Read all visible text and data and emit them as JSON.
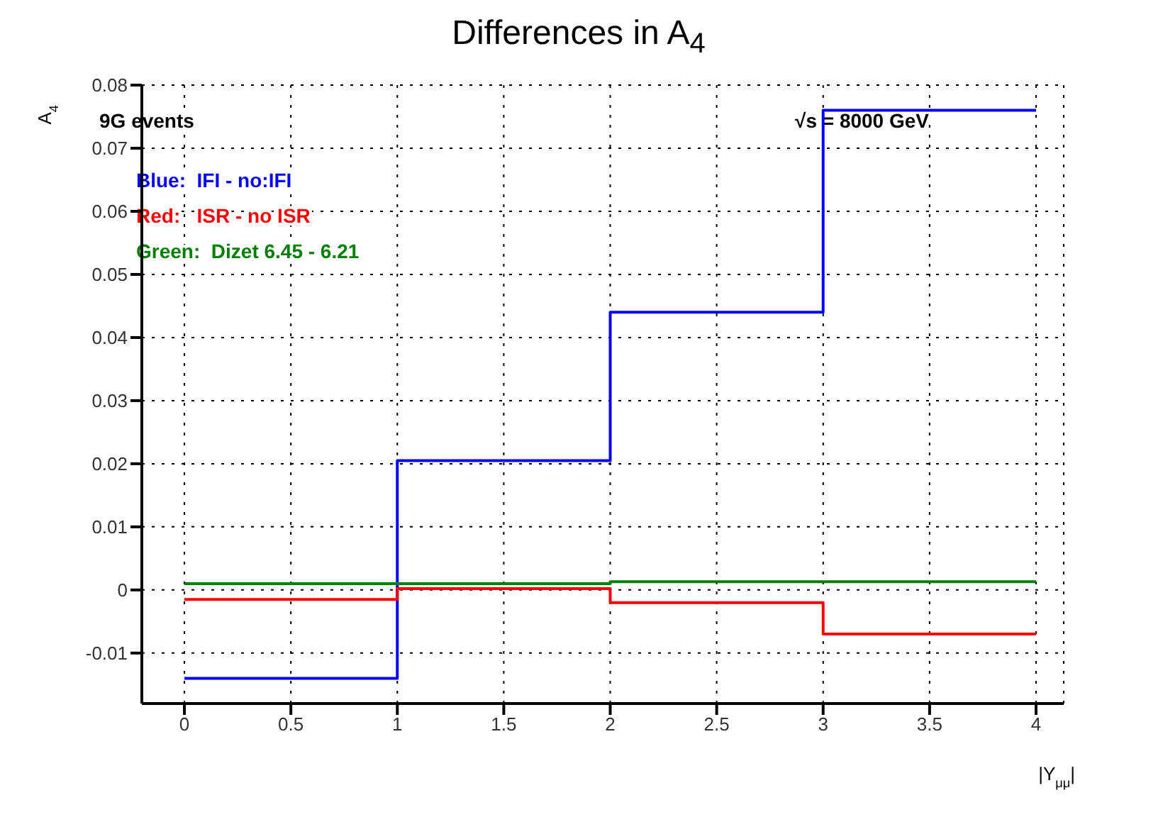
{
  "chart_data": {
    "type": "histogram",
    "title": "Differences in A$_{4}$",
    "xlabel": "|Y$_{μμ}$|",
    "ylabel": "A$_{4}$",
    "annotations": [
      "9G events",
      "√s = 8000 GeV"
    ],
    "bins": [
      0,
      1,
      2,
      3,
      4
    ],
    "series": [
      {
        "name": "Blue:  IFI - no:IFI",
        "color": "#0000ff",
        "values": [
          -0.014,
          0.0205,
          0.044,
          0.076
        ]
      },
      {
        "name": "Red:   ISR - no ISR",
        "color": "#ff0000",
        "values": [
          -0.0015,
          0.0002,
          -0.002,
          -0.007
        ]
      },
      {
        "name": "Green:  Dizet 6.45 - 6.21",
        "color": "#008000",
        "values": [
          0.001,
          0.001,
          0.0013,
          0.0013
        ]
      }
    ],
    "xlim": [
      -0.2,
      4.13
    ],
    "xticks": [
      0,
      0.5,
      1,
      1.5,
      2,
      2.5,
      3,
      3.5,
      4
    ],
    "ylim": [
      -0.018,
      0.08
    ],
    "yticks": [
      -0.01,
      0,
      0.01,
      0.02,
      0.03,
      0.04,
      0.05,
      0.06,
      0.07,
      0.08
    ],
    "grid": true,
    "legend": "top left",
    "line_style": "solid",
    "marker": "none"
  }
}
